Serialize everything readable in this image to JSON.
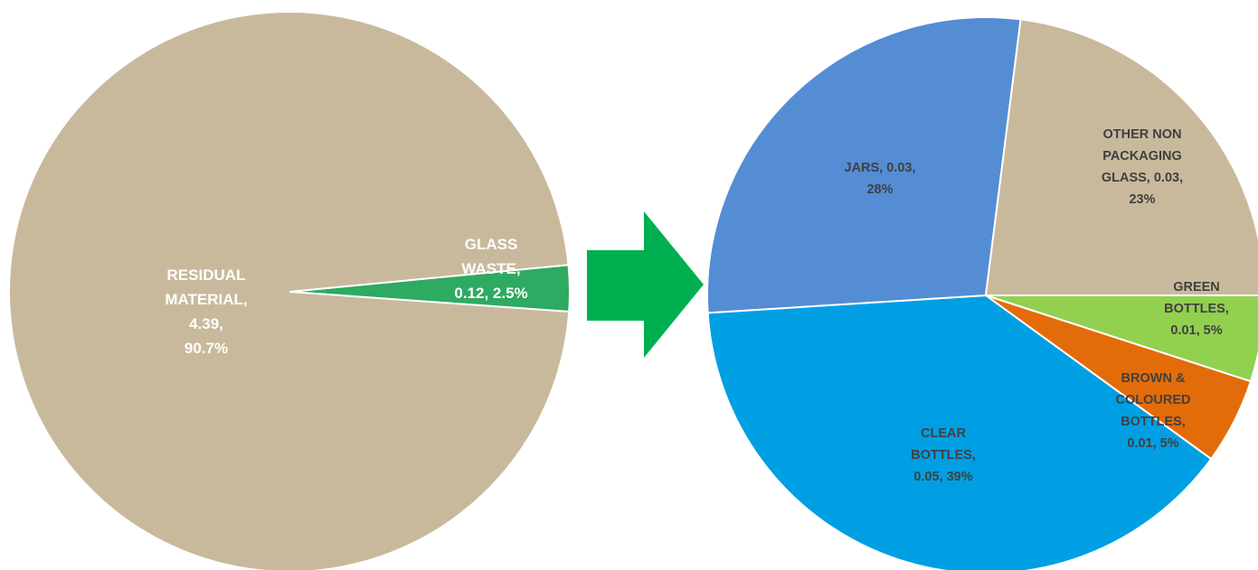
{
  "chart_data": [
    {
      "type": "pie",
      "title": "",
      "slices": [
        {
          "label": "RESIDUAL MATERIAL",
          "value": 4.39,
          "percent": "90.7%",
          "color": "#C9B99C",
          "label_color": "#FFFFFF",
          "label_lines": [
            "RESIDUAL",
            "MATERIAL,",
            "4.39,",
            "90.7%"
          ]
        },
        {
          "label": "GLASS WASTE",
          "value": 0.12,
          "percent": "2.5%",
          "color": "#2EAA62",
          "label_color": "#FFFFFF",
          "label_lines": [
            "GLASS",
            "WASTE,",
            "0.12, 2.5%"
          ]
        }
      ]
    },
    {
      "type": "pie",
      "title": "",
      "slices": [
        {
          "label": "OTHER NON PACKAGING GLASS",
          "value": 0.03,
          "percent": "23%",
          "color": "#C9B99C",
          "label_color": "#404040",
          "label_lines": [
            "OTHER  NON",
            "PACKAGING",
            "GLASS, 0.03,",
            "23%"
          ]
        },
        {
          "label": "GREEN BOTTLES",
          "value": 0.01,
          "percent": "5%",
          "color": "#92D050",
          "label_color": "#404040",
          "label_lines": [
            "GREEN",
            "BOTTLES,",
            "0.01, 5%"
          ]
        },
        {
          "label": "BROWN & COLOURED BOTTLES",
          "value": 0.01,
          "percent": "5%",
          "color": "#E36C0A",
          "label_color": "#404040",
          "label_lines": [
            "BROWN &",
            "COLOURED",
            "BOTTLES,",
            "0.01, 5%"
          ]
        },
        {
          "label": "CLEAR BOTTLES",
          "value": 0.05,
          "percent": "39%",
          "color": "#009FE3",
          "label_color": "#404040",
          "label_lines": [
            "CLEAR",
            "BOTTLES,",
            "0.05, 39%"
          ]
        },
        {
          "label": "JARS",
          "value": 0.03,
          "percent": "28%",
          "color": "#548DD4",
          "label_color": "#404040",
          "label_lines": [
            "JARS, 0.03,",
            "28%"
          ]
        }
      ]
    }
  ],
  "arrow": {
    "icon": "right-arrow-icon",
    "color": "#00B050"
  }
}
